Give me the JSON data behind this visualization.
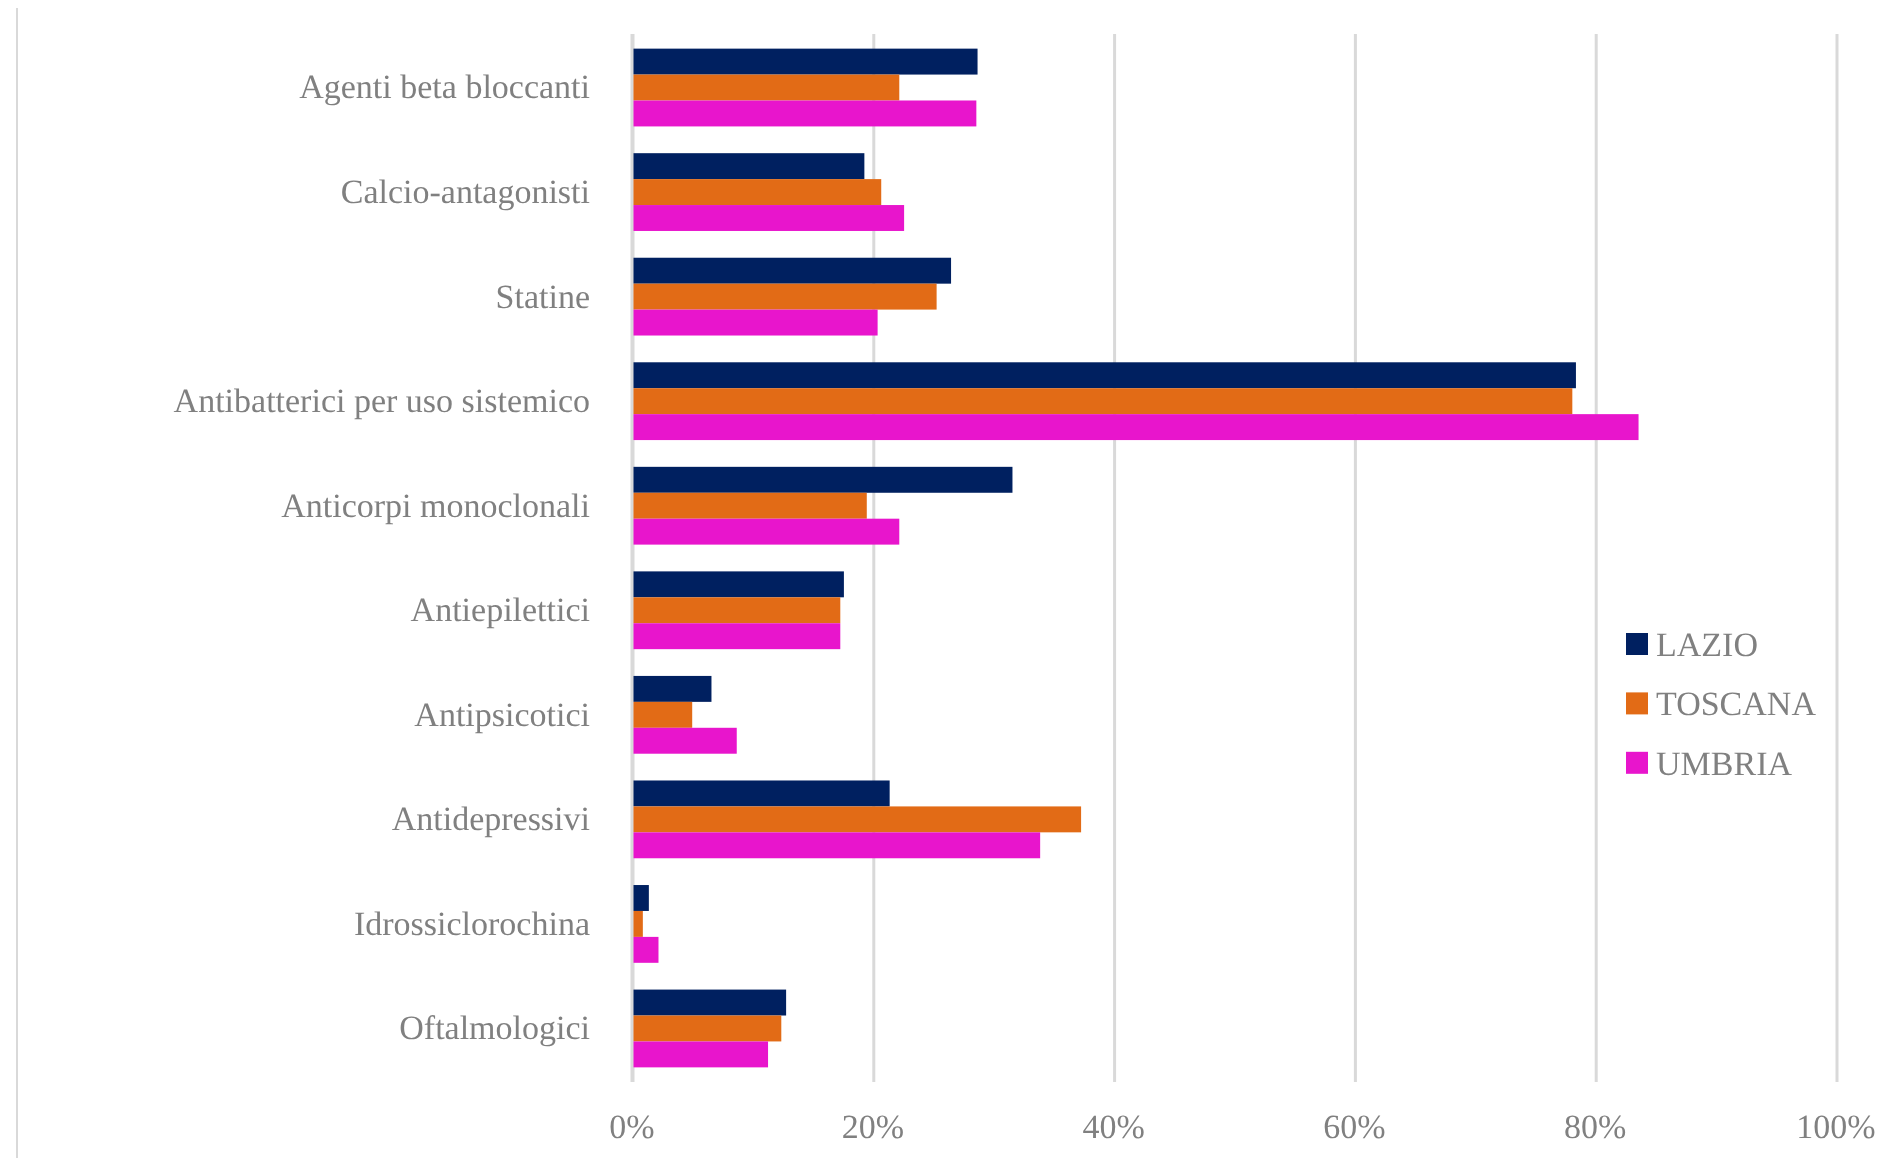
{
  "chart_data": {
    "type": "bar",
    "orientation": "horizontal",
    "categories": [
      "Agenti beta bloccanti",
      "Calcio-antagonisti",
      "Statine",
      "Antibatterici per uso sistemico",
      "Anticorpi monoclonali",
      "Antiepilettici",
      "Antipsicotici",
      "Antidepressivi",
      "Idrossiclorochina",
      "Oftalmologici"
    ],
    "series": [
      {
        "name": "LAZIO",
        "color": "#002060",
        "values": [
          28.7,
          19.3,
          26.5,
          78.4,
          31.6,
          17.6,
          6.6,
          21.4,
          1.4,
          12.8
        ]
      },
      {
        "name": "TOSCANA",
        "color": "#e26b16",
        "values": [
          22.2,
          20.7,
          25.3,
          78.1,
          19.5,
          17.3,
          5.0,
          37.3,
          0.9,
          12.4
        ]
      },
      {
        "name": "UMBRIA",
        "color": "#e815cc",
        "values": [
          28.6,
          22.6,
          20.4,
          83.6,
          22.2,
          17.3,
          8.7,
          33.9,
          2.2,
          11.3
        ]
      }
    ],
    "xlim": [
      0,
      100
    ],
    "xticks": [
      {
        "value": 0,
        "label": "0%"
      },
      {
        "value": 20,
        "label": "20%"
      },
      {
        "value": 40,
        "label": "40%"
      },
      {
        "value": 60,
        "label": "60%"
      },
      {
        "value": 80,
        "label": "80%"
      },
      {
        "value": 100,
        "label": "100%"
      }
    ],
    "grid": "x",
    "legend": "right"
  }
}
